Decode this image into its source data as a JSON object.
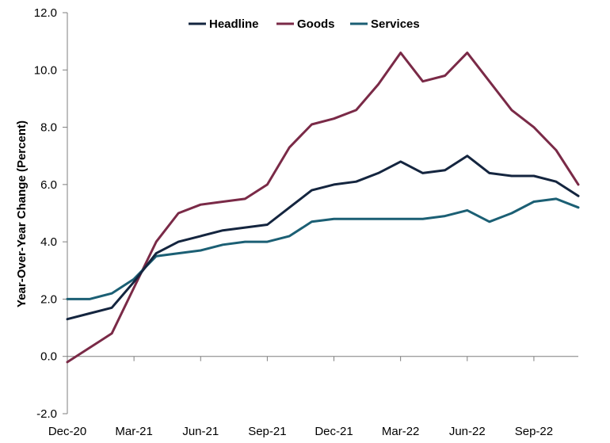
{
  "chart_data": {
    "type": "line",
    "title": "",
    "xlabel": "",
    "ylabel": "Year-Over-Year Change (Percent)",
    "ylim": [
      -2.0,
      12.0
    ],
    "yticks": [
      "-2.0",
      "0.0",
      "2.0",
      "4.0",
      "6.0",
      "8.0",
      "10.0",
      "12.0"
    ],
    "x": [
      "Dec-20",
      "Jan-21",
      "Feb-21",
      "Mar-21",
      "Apr-21",
      "May-21",
      "Jun-21",
      "Jul-21",
      "Aug-21",
      "Sep-21",
      "Oct-21",
      "Nov-21",
      "Dec-21",
      "Jan-22",
      "Feb-22",
      "Mar-22",
      "Apr-22",
      "May-22",
      "Jun-22",
      "Jul-22",
      "Aug-22",
      "Sep-22",
      "Oct-22",
      "Nov-22"
    ],
    "xtick_labels": [
      "Dec-20",
      "Mar-21",
      "Jun-21",
      "Sep-21",
      "Dec-21",
      "Mar-22",
      "Jun-22",
      "Sep-22"
    ],
    "grid": false,
    "legend_position": "top-center",
    "series": [
      {
        "name": "Headline",
        "color": "#14253f",
        "values": [
          1.3,
          1.5,
          1.7,
          2.6,
          3.6,
          4.0,
          4.2,
          4.4,
          4.5,
          4.6,
          5.2,
          5.8,
          6.0,
          6.1,
          6.4,
          6.8,
          6.4,
          6.5,
          7.0,
          6.4,
          6.3,
          6.3,
          6.1,
          5.6
        ]
      },
      {
        "name": "Goods",
        "color": "#7a2a47",
        "values": [
          -0.2,
          0.3,
          0.8,
          2.4,
          4.0,
          5.0,
          5.3,
          5.4,
          5.5,
          6.0,
          7.3,
          8.1,
          8.3,
          8.6,
          9.5,
          10.6,
          9.6,
          9.8,
          10.6,
          9.6,
          8.6,
          8.0,
          7.2,
          6.0
        ]
      },
      {
        "name": "Services",
        "color": "#1b5f74",
        "values": [
          2.0,
          2.0,
          2.2,
          2.7,
          3.5,
          3.6,
          3.7,
          3.9,
          4.0,
          4.0,
          4.2,
          4.7,
          4.8,
          4.8,
          4.8,
          4.8,
          4.8,
          4.9,
          5.1,
          4.7,
          5.0,
          5.4,
          5.5,
          5.2
        ]
      }
    ]
  }
}
